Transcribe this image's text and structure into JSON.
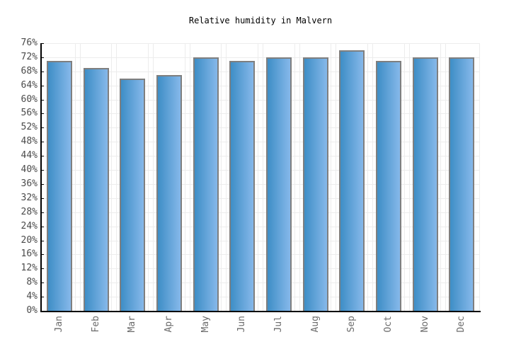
{
  "chart_data": {
    "type": "bar",
    "title": "Relative humidity in Malvern",
    "categories": [
      "Jan",
      "Feb",
      "Mar",
      "Apr",
      "May",
      "Jun",
      "Jul",
      "Aug",
      "Sep",
      "Oct",
      "Nov",
      "Dec"
    ],
    "values": [
      71,
      69,
      66,
      67,
      72,
      71,
      72,
      72,
      74,
      71,
      72,
      72
    ],
    "unit": "%",
    "ylim": [
      0,
      76
    ],
    "ytick_step": 4,
    "grid": "on",
    "legend": "none",
    "colors": {
      "bar_gradient_left": "#3e8ec6",
      "bar_gradient_right": "#86b8ea",
      "bar_border": "#7f7f7f",
      "gridline": "#ececec",
      "axis": "#000000",
      "ytick_label": "#4a4a4a",
      "xtick_label": "#6b6b6b",
      "title_color": "#000000",
      "background": "#ffffff"
    }
  }
}
